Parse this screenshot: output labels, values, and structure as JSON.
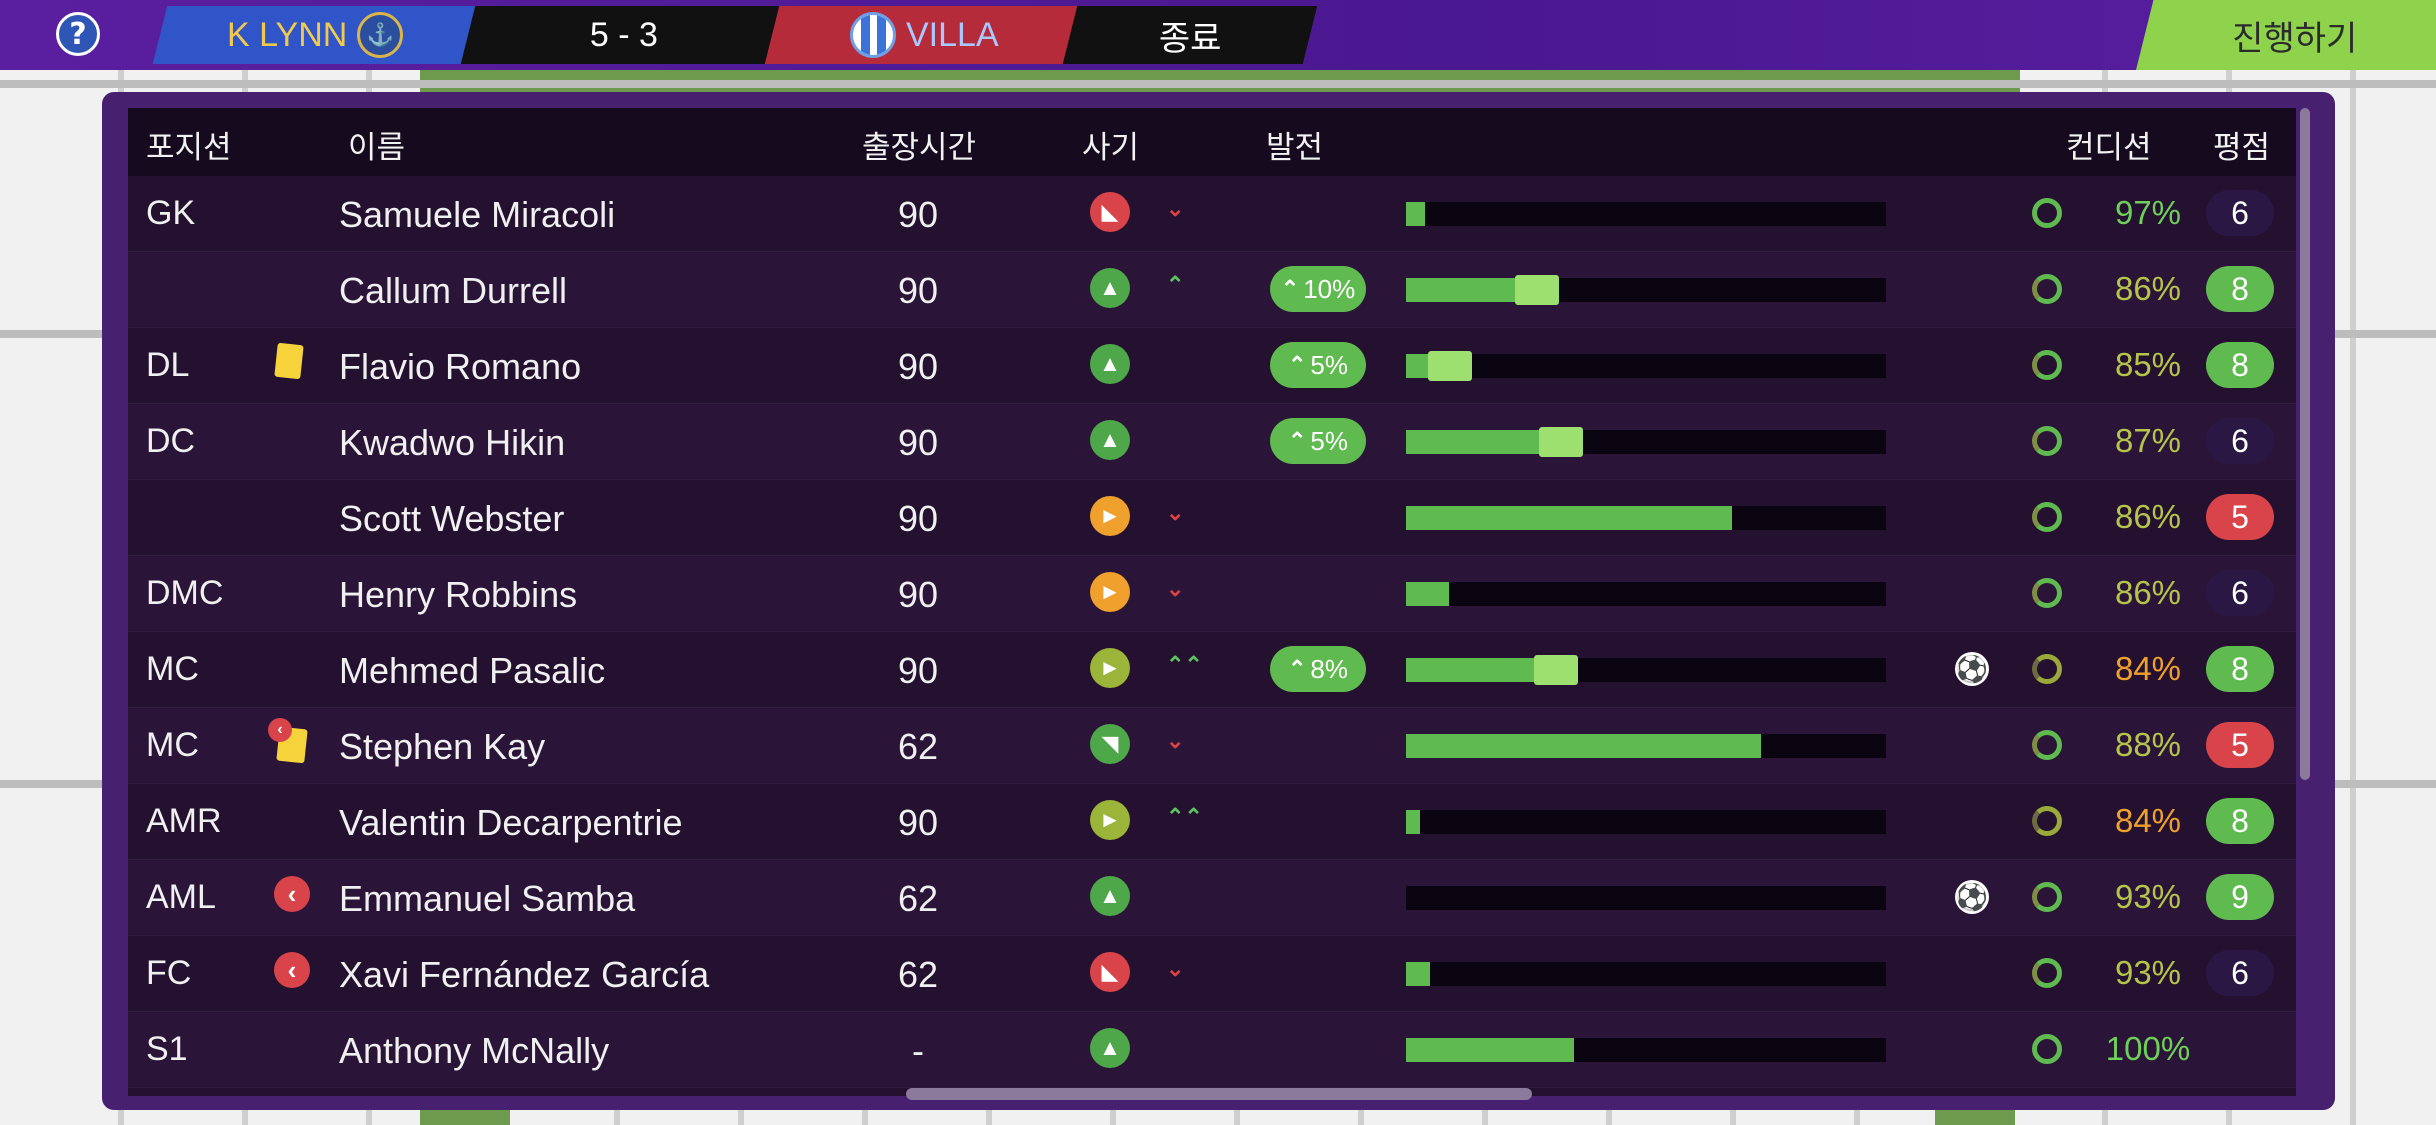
{
  "header": {
    "help_label": "?",
    "home_team": "K LYNN",
    "score": "5 - 3",
    "away_team": "VILLA",
    "status": "종료",
    "continue_label": "진행하기"
  },
  "columns": {
    "position": "포지션",
    "name": "이름",
    "minutes": "출장시간",
    "morale": "사기",
    "development": "발전",
    "condition": "컨디션",
    "rating": "평점"
  },
  "players": [
    {
      "position": "GK",
      "name": "Samuele Miracoli",
      "minutes": "90",
      "morale": "red",
      "morale_icon": "arrow-down-left-icon",
      "trend": "down",
      "development": "",
      "progress": 0.04,
      "condition": "97%",
      "condition_level": "green",
      "rating": "6",
      "rating_style": "dark"
    },
    {
      "position": "",
      "name": "Callum Durrell",
      "minutes": "90",
      "morale": "green",
      "morale_icon": "arrow-up-icon",
      "trend": "up",
      "development": "10%",
      "progress": 0.31,
      "condition": "86%",
      "condition_level": "olive",
      "rating": "8",
      "rating_style": "green"
    },
    {
      "position": "DL",
      "name": "Flavio Romano",
      "minutes": "90",
      "morale": "green",
      "morale_icon": "arrow-up-icon",
      "trend": "",
      "development": "5%",
      "progress": 0.13,
      "condition": "85%",
      "condition_level": "olive",
      "rating": "8",
      "rating_style": "green"
    },
    {
      "position": "DC",
      "name": "Kwadwo Hikin",
      "minutes": "90",
      "morale": "green",
      "morale_icon": "arrow-up-icon",
      "trend": "",
      "development": "5%",
      "progress": 0.36,
      "condition": "87%",
      "condition_level": "olive",
      "rating": "6",
      "rating_style": "dark"
    },
    {
      "position": "",
      "name": "Scott Webster",
      "minutes": "90",
      "morale": "orange",
      "morale_icon": "arrow-right-icon",
      "trend": "down",
      "development": "",
      "progress": 0.68,
      "condition": "86%",
      "condition_level": "olive",
      "rating": "5",
      "rating_style": "red"
    },
    {
      "position": "DMC",
      "name": "Henry Robbins",
      "minutes": "90",
      "morale": "orange",
      "morale_icon": "arrow-right-icon",
      "trend": "down",
      "development": "",
      "progress": 0.09,
      "condition": "86%",
      "condition_level": "olive",
      "rating": "6",
      "rating_style": "dark"
    },
    {
      "position": "MC",
      "name": "Mehmed Pasalic",
      "minutes": "90",
      "morale": "olive",
      "morale_icon": "arrow-right-icon",
      "trend": "double-up",
      "development": "8%",
      "progress": 0.35,
      "condition": "84%",
      "condition_level": "orange",
      "rating": "8",
      "rating_style": "green"
    },
    {
      "position": "MC",
      "name": "Stephen Kay",
      "minutes": "62",
      "morale": "green",
      "morale_icon": "arrow-up-right-icon",
      "trend": "down-small",
      "development": "",
      "progress": 0.74,
      "condition": "88%",
      "condition_level": "olive",
      "rating": "5",
      "rating_style": "red"
    },
    {
      "position": "AMR",
      "name": "Valentin Decarpentrie",
      "minutes": "90",
      "morale": "olive",
      "morale_icon": "arrow-right-icon",
      "trend": "double-up",
      "development": "",
      "progress": 0.03,
      "condition": "84%",
      "condition_level": "orange",
      "rating": "8",
      "rating_style": "green"
    },
    {
      "position": "AML",
      "name": "Emmanuel Samba",
      "minutes": "62",
      "morale": "green",
      "morale_icon": "arrow-up-icon",
      "trend": "",
      "development": "",
      "progress": 0.0,
      "condition": "93%",
      "condition_level": "olive",
      "rating": "9",
      "rating_style": "green"
    },
    {
      "position": "FC",
      "name": "Xavi Fernández García",
      "minutes": "62",
      "morale": "red",
      "morale_icon": "arrow-down-left-icon",
      "trend": "down",
      "development": "",
      "progress": 0.05,
      "condition": "93%",
      "condition_level": "olive",
      "rating": "6",
      "rating_style": "dark"
    },
    {
      "position": "S1",
      "name": "Anthony McNally",
      "minutes": "-",
      "morale": "green",
      "morale_icon": "arrow-up-icon",
      "trend": "",
      "development": "",
      "progress": 0.35,
      "condition": "100%",
      "condition_level": "green",
      "rating": "",
      "rating_style": "none"
    }
  ],
  "colors": {
    "green": "#5fba4f",
    "red": "#d9444b",
    "orange": "#f0a02c",
    "olive": "#9bb43a",
    "panel": "#23112f",
    "accent": "#8ed34b"
  }
}
